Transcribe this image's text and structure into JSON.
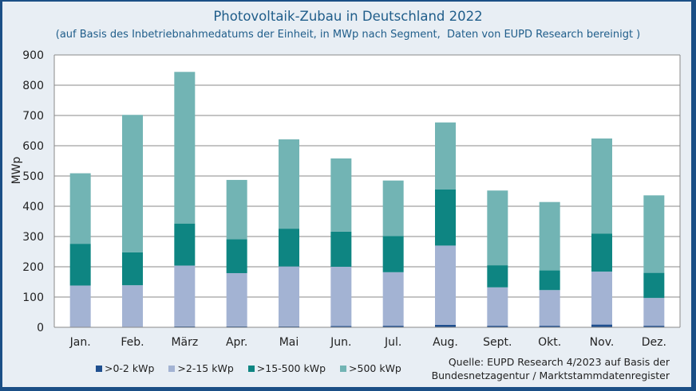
{
  "chart_data": {
    "type": "bar",
    "stacked": true,
    "title": "Photovoltaik-Zubau in Deutschland 2022",
    "subtitle": "(auf Basis des Inbetriebnahmedatums der Einheit, in MWp nach Segment,  Daten von EUPD Research bereinigt )",
    "xlabel": "",
    "ylabel": "MWp",
    "ylim": [
      0,
      900
    ],
    "yticks": [
      0,
      100,
      200,
      300,
      400,
      500,
      600,
      700,
      800,
      900
    ],
    "grid": true,
    "legend_position": "bottom-left",
    "categories": [
      "Jan.",
      "Feb.",
      "März",
      "Apr.",
      "Mai",
      "Jun.",
      "Jul.",
      "Aug.",
      "Sept.",
      "Okt.",
      "Nov.",
      "Dez."
    ],
    "series": [
      {
        "name": ">0-2 kWp",
        "color": "#1f4f8f",
        "values": [
          1,
          1,
          3,
          3,
          3,
          4,
          5,
          8,
          5,
          5,
          9,
          5
        ]
      },
      {
        "name": ">2-15 kWp",
        "color": "#a3b3d3",
        "values": [
          137,
          138,
          201,
          176,
          198,
          196,
          177,
          262,
          127,
          118,
          175,
          92
        ]
      },
      {
        "name": ">15-500 kWp",
        "color": "#0e8582",
        "values": [
          138,
          109,
          139,
          112,
          125,
          116,
          120,
          186,
          73,
          65,
          126,
          83
        ]
      },
      {
        "name": ">500 kWp",
        "color": "#72b4b4",
        "values": [
          233,
          454,
          501,
          196,
          295,
          242,
          183,
          221,
          247,
          226,
          314,
          256
        ]
      }
    ],
    "source_line1": "Quelle: EUPD Research 4/2023 auf Basis der",
    "source_line2": "Bundesnetzagentur / Marktstammdatenregister"
  }
}
